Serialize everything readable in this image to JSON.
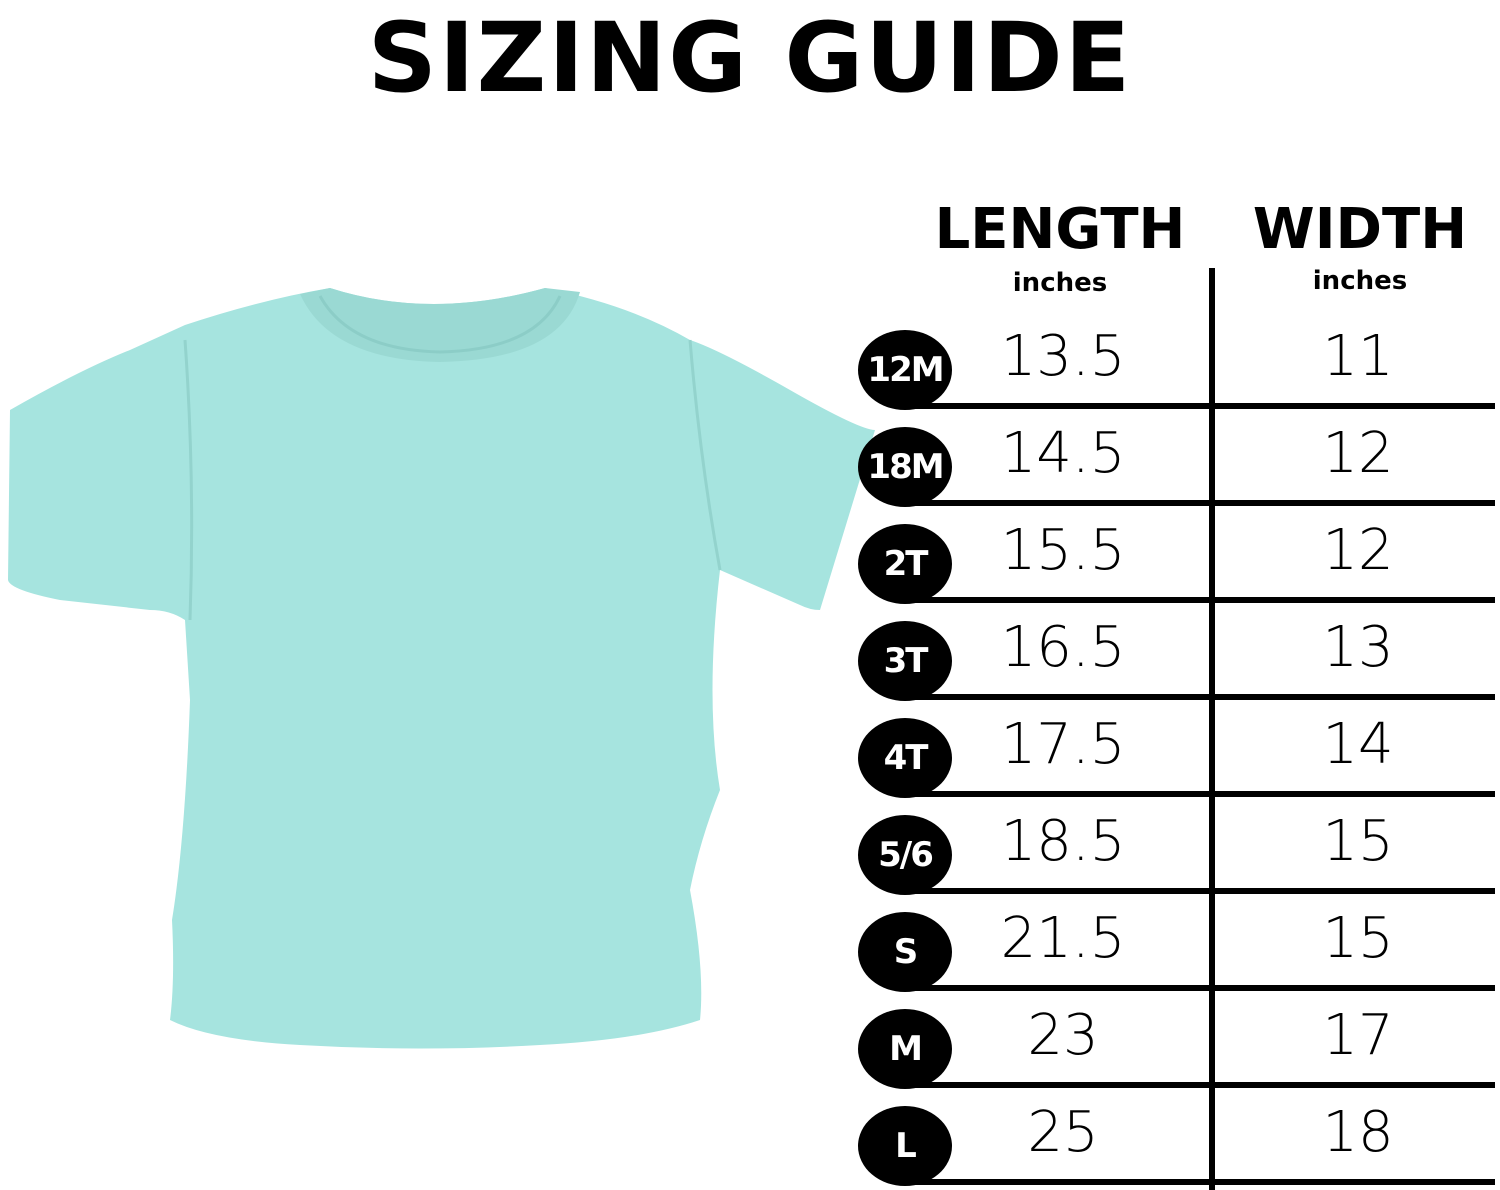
{
  "title": "SIZING GUIDE",
  "colors": {
    "shirt": "#a6e4df",
    "ink": "#000000"
  },
  "image": "mint-t-shirt",
  "columns": [
    {
      "label": "LENGTH",
      "unit": "inches"
    },
    {
      "label": "WIDTH",
      "unit": "inches"
    }
  ],
  "rows": [
    {
      "size": "12M",
      "length": "13.5",
      "width": "11"
    },
    {
      "size": "18M",
      "length": "14.5",
      "width": "12"
    },
    {
      "size": "2T",
      "length": "15.5",
      "width": "12"
    },
    {
      "size": "3T",
      "length": "16.5",
      "width": "13"
    },
    {
      "size": "4T",
      "length": "17.5",
      "width": "14"
    },
    {
      "size": "5/6",
      "length": "18.5",
      "width": "15"
    },
    {
      "size": "S",
      "length": "21.5",
      "width": "15"
    },
    {
      "size": "M",
      "length": "23",
      "width": "17"
    },
    {
      "size": "L",
      "length": "25",
      "width": "18"
    }
  ]
}
